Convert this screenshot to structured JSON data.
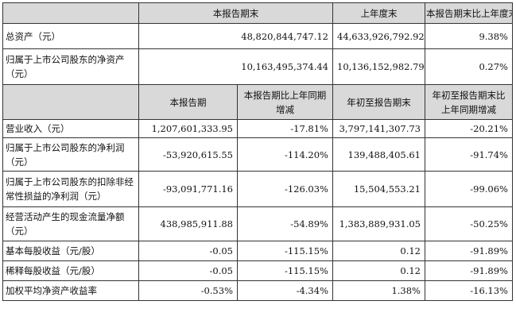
{
  "top_header": {
    "col1": "本报告期末",
    "col2": "上年度末",
    "col3": "本报告期末比上年度末增减"
  },
  "top_rows": [
    {
      "label": "总资产（元）",
      "end_of_period": "48,820,844,747.12",
      "prior_year_end": "44,633,926,792.92",
      "change": "9.38%"
    },
    {
      "label": "归属于上市公司股东的净资产（元）",
      "end_of_period": "10,163,495,374.44",
      "prior_year_end": "10,136,152,982.79",
      "change": "0.27%"
    }
  ],
  "mid_header": {
    "col1": "本报告期",
    "col2": "本报告期比上年同期增减",
    "col3": "年初至报告期末",
    "col4": "年初至报告期末比上年同期增减"
  },
  "rows": [
    {
      "label": "营业收入（元）",
      "period": "1,207,601,333.95",
      "period_change": "-17.81%",
      "ytd": "3,797,141,307.73",
      "ytd_change": "-20.21%"
    },
    {
      "label": "归属于上市公司股东的净利润（元）",
      "period": "-53,920,615.55",
      "period_change": "-114.20%",
      "ytd": "139,488,405.61",
      "ytd_change": "-91.74%"
    },
    {
      "label": "归属于上市公司股东的扣除非经常性损益的净利润（元）",
      "period": "-93,091,771.16",
      "period_change": "-126.03%",
      "ytd": "15,504,553.21",
      "ytd_change": "-99.06%"
    },
    {
      "label": "经营活动产生的现金流量净额（元）",
      "period": "438,985,911.88",
      "period_change": "-54.89%",
      "ytd": "1,383,889,931.05",
      "ytd_change": "-50.25%"
    },
    {
      "label": "基本每股收益（元/股）",
      "period": "-0.05",
      "period_change": "-115.15%",
      "ytd": "0.12",
      "ytd_change": "-91.89%"
    },
    {
      "label": "稀释每股收益（元/股）",
      "period": "-0.05",
      "period_change": "-115.15%",
      "ytd": "0.12",
      "ytd_change": "-91.89%"
    },
    {
      "label": "加权平均净资产收益率",
      "period": "-0.53%",
      "period_change": "-4.34%",
      "ytd": "1.38%",
      "ytd_change": "-16.13%"
    }
  ]
}
